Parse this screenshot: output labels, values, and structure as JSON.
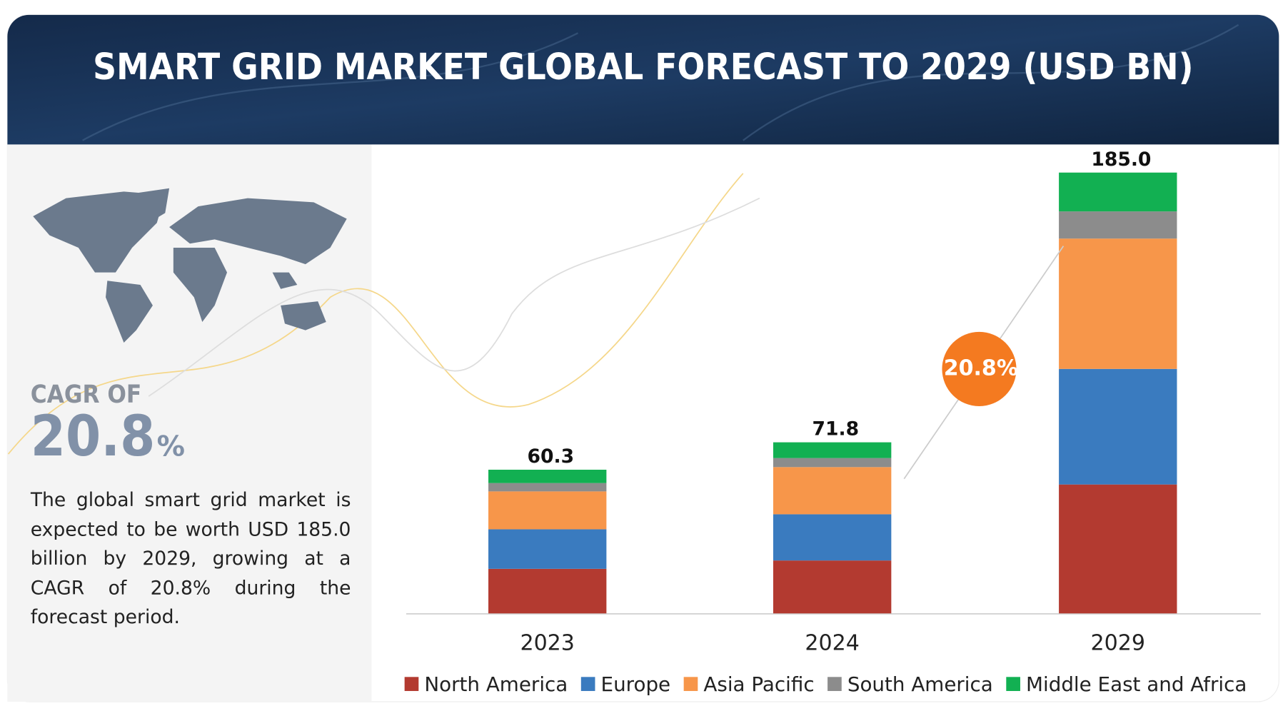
{
  "title": "SMART GRID MARKET GLOBAL FORECAST TO 2029 (USD BN)",
  "side_panel": {
    "cagr_heading": "CAGR OF",
    "cagr_value": "20.8",
    "cagr_unit": "%",
    "text": "The global smart grid market is expected to be worth USD 185.0 billion by 2029, growing at a CAGR of 20.8% during the forecast period."
  },
  "chart_data": {
    "type": "stacked_bar",
    "categories": [
      "2023",
      "2024",
      "2029"
    ],
    "series": [
      {
        "name": "North America",
        "color": "#b33a30",
        "values": [
          18.7,
          22.2,
          54.1
        ]
      },
      {
        "name": "Europe",
        "color": "#3a7bbf",
        "values": [
          16.6,
          19.4,
          48.5
        ]
      },
      {
        "name": "Asia Pacific",
        "color": "#f7964a",
        "values": [
          15.9,
          19.8,
          54.7
        ]
      },
      {
        "name": "South America",
        "color": "#8c8c8c",
        "values": [
          3.5,
          3.8,
          11.4
        ]
      },
      {
        "name": "Middle East and Africa",
        "color": "#12b052",
        "values": [
          5.6,
          6.6,
          16.3
        ]
      }
    ],
    "totals": [
      60.3,
      71.8,
      185
    ],
    "total_labels": [
      "60.3",
      "71.8",
      "185.0"
    ],
    "annotation": "20.8%"
  }
}
